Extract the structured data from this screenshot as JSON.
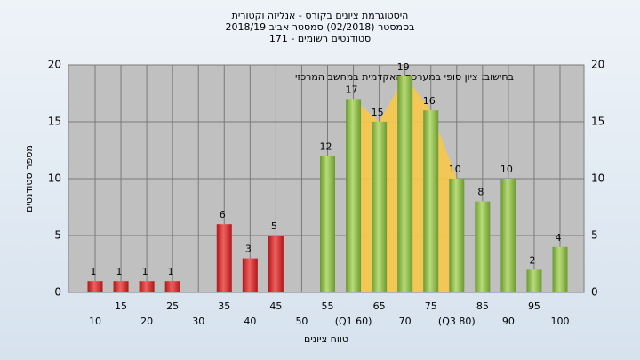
{
  "chart_data": {
    "type": "bar",
    "title_lines": [
      "היסטוגרמת ציונים בקורס - אנליזה וקטורית",
      "בסמסטר  (02/2018)  סמסטר אביב 2018/19",
      "סטודנטים רשומים - 171"
    ],
    "annotation": "בחישוב: ציון סופי במערכת האקדמית במחשב המרכזי",
    "x_label": "טווח ציונים",
    "y_label": "מספר סטודנטים",
    "categories": [
      "10",
      "15",
      "20",
      "25",
      "30",
      "35",
      "40",
      "45",
      "50",
      "55",
      "(Q1 60)",
      "65",
      "70",
      "75",
      "(Q3 80)",
      "85",
      "90",
      "95",
      "100"
    ],
    "values": [
      1,
      1,
      1,
      1,
      0,
      6,
      3,
      5,
      0,
      12,
      17,
      15,
      19,
      16,
      10,
      8,
      10,
      2,
      4
    ],
    "fail_color": "#e03535",
    "pass_color": "#8dbf4a",
    "band_color": "#f7c84a",
    "pass_from": 9,
    "band_from": 10,
    "band_to": 14,
    "ylim": [
      0,
      20
    ],
    "yticks": [
      0,
      5,
      10,
      15,
      20
    ],
    "grid": true
  }
}
